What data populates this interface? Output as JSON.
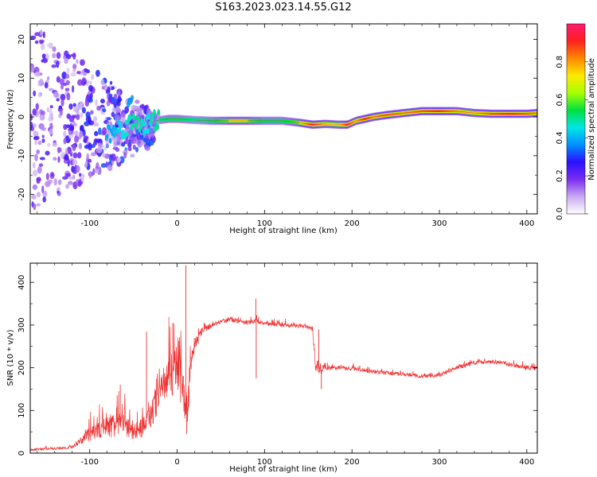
{
  "page": {
    "title": "S163.2023.023.14.55.G12"
  },
  "colors": {
    "snr_line": "#ee3333",
    "ridge": "#e02060"
  },
  "chart_data": [
    {
      "type": "heatmap",
      "title": "S163.2023.023.14.55.G12",
      "xlabel": "Height of straight line (km)",
      "ylabel": "Frequency (Hz)",
      "xlim": [
        -168,
        412
      ],
      "ylim": [
        -25,
        24
      ],
      "x_ticks": [
        -100,
        0,
        100,
        200,
        300,
        400
      ],
      "y_ticks": [
        -20,
        -10,
        0,
        10,
        20
      ],
      "grid": false,
      "colorbar": {
        "label": "Normalized spectral amplitude",
        "range": [
          0,
          1
        ],
        "ticks": [
          "0.0",
          "0.2",
          "0.4",
          "0.6",
          "0.8"
        ],
        "tick_values": [
          0.0,
          0.2,
          0.4,
          0.6,
          0.8
        ],
        "colormap": [
          "#ffffff",
          "#c9a8f2",
          "#7b2cf0",
          "#2a10ff",
          "#0090ff",
          "#00e6e6",
          "#00e040",
          "#a6ff00",
          "#ffea00",
          "#ff8800",
          "#ff2020",
          "#ff1870"
        ]
      },
      "ridge": {
        "x": [
          -75,
          -65,
          -55,
          -45,
          -35,
          -25,
          -10,
          0,
          20,
          40,
          60,
          80,
          100,
          120,
          140,
          155,
          170,
          185,
          195,
          205,
          215,
          225,
          240,
          260,
          280,
          300,
          320,
          340,
          360,
          380,
          400,
          412
        ],
        "y": [
          -4,
          -3,
          -2,
          -1,
          -2,
          -1,
          -0.5,
          -0.5,
          -0.8,
          -1,
          -1,
          -1,
          -1,
          -1,
          -1.5,
          -2,
          -1.8,
          -2,
          -2,
          -1,
          -0.5,
          0,
          0.5,
          1,
          1.5,
          1.5,
          1.5,
          1,
          0.8,
          0.8,
          0.8,
          1
        ],
        "amplitude": [
          0.35,
          0.45,
          0.5,
          0.55,
          0.45,
          0.55,
          0.6,
          0.6,
          0.55,
          0.6,
          0.7,
          0.7,
          0.6,
          0.6,
          0.7,
          0.9,
          0.75,
          0.7,
          0.9,
          0.75,
          0.9,
          0.8,
          0.85,
          0.8,
          0.85,
          0.9,
          0.8,
          0.75,
          0.85,
          0.9,
          0.85,
          0.8
        ]
      },
      "noise_region": {
        "x_range": [
          -168,
          -25
        ],
        "amplitude": [
          0.05,
          0.35
        ]
      }
    },
    {
      "type": "line",
      "xlabel": "Height of straight line (km)",
      "ylabel": "SNR (10 * v/v)",
      "xlim": [
        -168,
        412
      ],
      "ylim": [
        0,
        445
      ],
      "x_ticks": [
        -100,
        0,
        100,
        200,
        300,
        400
      ],
      "y_ticks": [
        0,
        100,
        200,
        300,
        400
      ],
      "grid": false,
      "series": [
        {
          "x": [
            -168,
            -150,
            -130,
            -120,
            -110,
            -100,
            -90,
            -80,
            -70,
            -60,
            -50,
            -40,
            -30,
            -20,
            -10,
            0,
            5,
            10,
            12,
            15,
            20,
            30,
            40,
            50,
            60,
            80,
            90,
            100,
            120,
            140,
            150,
            155,
            158,
            165,
            170,
            180,
            200,
            220,
            240,
            260,
            280,
            300,
            320,
            340,
            360,
            380,
            400,
            412
          ],
          "values": [
            8,
            10,
            12,
            15,
            30,
            45,
            55,
            60,
            70,
            65,
            50,
            60,
            90,
            140,
            175,
            195,
            150,
            110,
            100,
            200,
            255,
            290,
            300,
            308,
            312,
            305,
            310,
            303,
            300,
            298,
            295,
            290,
            200,
            195,
            200,
            200,
            198,
            192,
            188,
            185,
            180,
            182,
            200,
            212,
            215,
            208,
            200,
            198
          ],
          "noise_amplitude": [
            4,
            4,
            5,
            6,
            15,
            30,
            35,
            40,
            55,
            45,
            30,
            40,
            55,
            70,
            80,
            90,
            90,
            70,
            60,
            60,
            30,
            15,
            10,
            8,
            8,
            8,
            8,
            8,
            8,
            8,
            8,
            8,
            15,
            20,
            12,
            8,
            8,
            8,
            8,
            8,
            8,
            8,
            8,
            8,
            8,
            8,
            8,
            8
          ],
          "spikes": [
            {
              "x": 10,
              "y": 440
            },
            {
              "x": 11,
              "y": 45
            },
            {
              "x": 90,
              "y": 362
            },
            {
              "x": 90.5,
              "y": 175
            },
            {
              "x": 162,
              "y": 290
            },
            {
              "x": 165,
              "y": 150
            },
            {
              "x": -65,
              "y": 160
            },
            {
              "x": -5,
              "y": 305
            },
            {
              "x": -35,
              "y": 285
            }
          ]
        }
      ]
    }
  ]
}
